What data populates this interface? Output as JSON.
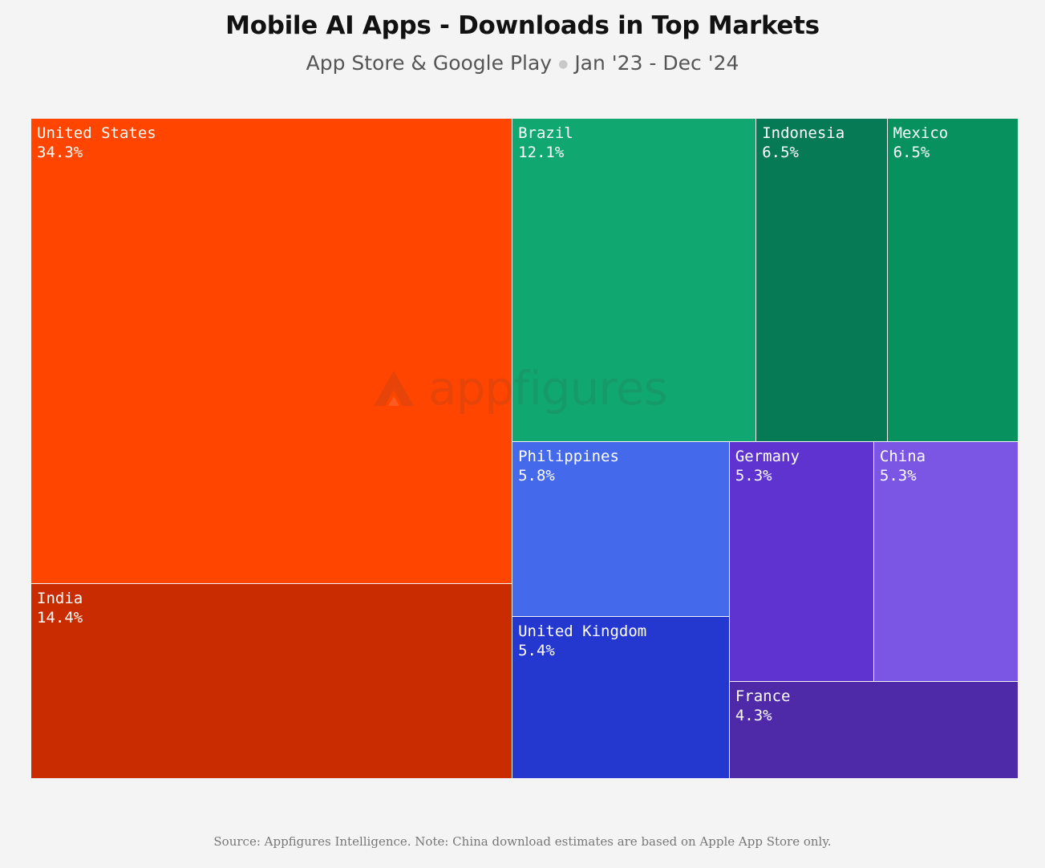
{
  "header": {
    "title": "Mobile AI Apps - Downloads in Top Markets",
    "subtitle_stores": "App Store & Google Play",
    "subtitle_period": "Jan '23 - Dec '24"
  },
  "watermark": {
    "text": "appfigures",
    "icon": "appfigures-logo-icon"
  },
  "footer": {
    "source": "Source: Appfigures Intelligence.  Note: China download estimates are based on Apple App Store only."
  },
  "chart_data": {
    "type": "treemap",
    "unit": "%",
    "items": [
      {
        "name": "United States",
        "value": 34.3,
        "label": "34.3%",
        "color": "#ff4500"
      },
      {
        "name": "India",
        "value": 14.4,
        "label": "14.4%",
        "color": "#c92c00"
      },
      {
        "name": "Brazil",
        "value": 12.1,
        "label": "12.1%",
        "color": "#10a870"
      },
      {
        "name": "Indonesia",
        "value": 6.5,
        "label": "6.5%",
        "color": "#057a55"
      },
      {
        "name": "Mexico",
        "value": 6.5,
        "label": "6.5%",
        "color": "#07915f"
      },
      {
        "name": "Philippines",
        "value": 5.8,
        "label": "5.8%",
        "color": "#4469ea"
      },
      {
        "name": "United Kingdom",
        "value": 5.4,
        "label": "5.4%",
        "color": "#2438d0"
      },
      {
        "name": "Germany",
        "value": 5.3,
        "label": "5.3%",
        "color": "#5e33cf"
      },
      {
        "name": "China",
        "value": 5.3,
        "label": "5.3%",
        "color": "#7b55e3"
      },
      {
        "name": "France",
        "value": 4.3,
        "label": "4.3%",
        "color": "#4e2aa9"
      }
    ]
  }
}
